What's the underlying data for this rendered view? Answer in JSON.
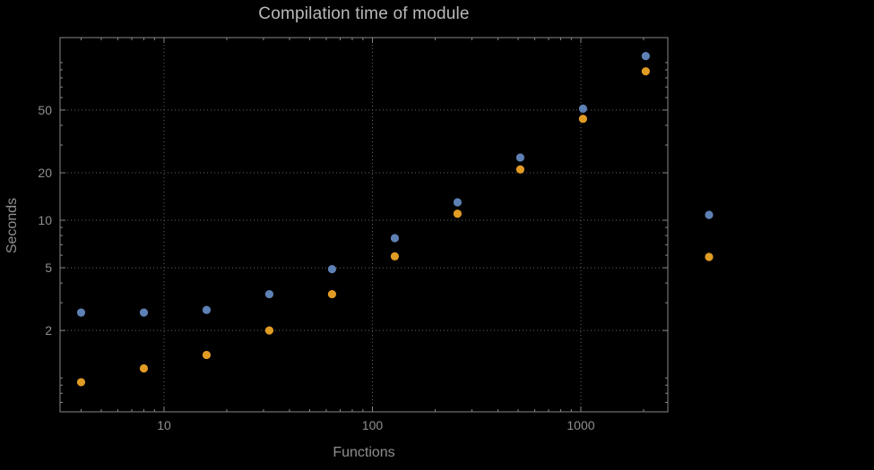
{
  "chart_data": {
    "type": "scatter",
    "title": "Compilation time of module",
    "xlabel": "Functions",
    "ylabel": "Seconds",
    "xscale": "log",
    "yscale": "log",
    "xlim": [
      3.17,
      2614
    ],
    "ylim": [
      0.61,
      144
    ],
    "x_ticks": [
      10,
      100,
      1000
    ],
    "y_ticks": [
      2,
      5,
      10,
      20,
      50
    ],
    "grid": true,
    "x": [
      4,
      8,
      16,
      32,
      64,
      128,
      256,
      512,
      1024,
      2048
    ],
    "series": [
      {
        "name": "blue",
        "color": "#5E81B5",
        "values": [
          2.6,
          2.6,
          2.7,
          3.4,
          4.9,
          7.7,
          13,
          25,
          51,
          110
        ]
      },
      {
        "name": "orange",
        "color": "#E19C24",
        "values": [
          0.94,
          1.15,
          1.4,
          2.0,
          3.4,
          5.9,
          11,
          21,
          44,
          88
        ]
      }
    ],
    "legend": {
      "position": "right",
      "markers": [
        {
          "color": "#5E81B5"
        },
        {
          "color": "#E19C24"
        }
      ]
    }
  },
  "colors": {
    "background": "#000000",
    "frame": "#878787",
    "grid": "#646464",
    "title_text": "#b9b9b9",
    "axis_text": "#8f8f8f",
    "series_blue": "#5E81B5",
    "series_orange": "#E19C24"
  }
}
